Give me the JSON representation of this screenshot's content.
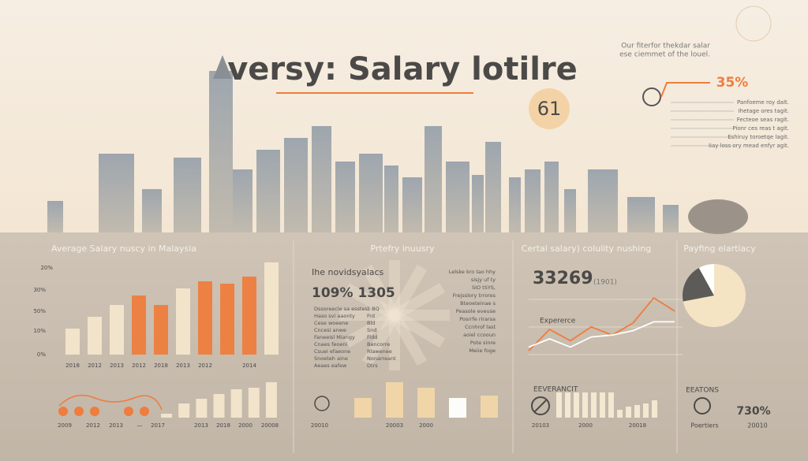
{
  "header": {
    "title": "versy: Salary lotilre",
    "badge": "61",
    "note": [
      "Our fiterfor thekdar salar",
      "ese ciemmet of the louel."
    ],
    "stat": "35%",
    "stat_list": [
      "Panfoeme roy dalt.",
      "Ihetage ores tagit.",
      "Fecteoe seas ragit.",
      "Pionr ces reas t agit.",
      "Eshiruy toroetqe lagit.",
      "Iiay loss ory mead enfyr agit."
    ]
  },
  "chart_data": [
    {
      "type": "bar",
      "title": "Average Salary nuscy in Malaysia",
      "axis_labels": [
        "20%",
        "30%",
        "50%",
        "10%",
        "0%"
      ],
      "categories": [
        "2018",
        "2012",
        "2013",
        "2012",
        "2018",
        "2013",
        "2012",
        null,
        "2014",
        null
      ],
      "values": [
        11,
        16,
        21,
        25,
        21,
        28,
        31,
        30,
        33,
        39
      ],
      "colors": [
        "#f3e6cc",
        "#f3e6cc",
        "#f3e6cc",
        "#ee7d3e",
        "#ee7d3e",
        "#f3e6cc",
        "#ee7d3e",
        "#ee7d3e",
        "#ee7d3e",
        "#f3e6cc"
      ],
      "ylim": [
        0,
        40
      ]
    },
    {
      "type": "line",
      "title": "Certal salary) colulity nushing",
      "headline": "33269",
      "subtitle": "(1901)",
      "label": "Expererce",
      "categories": [
        null,
        null,
        null,
        null,
        null,
        null,
        null,
        null
      ],
      "series": [
        {
          "color": "#ee7d3e",
          "values": [
            6,
            40,
            22,
            44,
            31,
            50,
            90,
            69
          ]
        },
        {
          "color": "#ffffff",
          "values": [
            12,
            25,
            12,
            28,
            31,
            38,
            52,
            52
          ]
        }
      ],
      "ylim": [
        0,
        100
      ]
    },
    {
      "type": "pie",
      "title": "Payfing elartiacy",
      "values": [
        72,
        20,
        8
      ],
      "colors": [
        "#f4e4c4",
        "#5c5b58",
        "#ffffff"
      ]
    },
    {
      "type": "bar",
      "axis_labels": [
        "2009",
        "2012",
        "2013",
        "—",
        "2017",
        "2013",
        "2018",
        "2000",
        "20008"
      ],
      "values": [
        5,
        18,
        24,
        30,
        36,
        38,
        45
      ],
      "color": "#f3e6cc",
      "ylim": [
        0,
        50
      ]
    },
    {
      "type": "bar",
      "axis_labels": [
        "20010",
        "20003",
        "2000"
      ],
      "values": [
        25,
        45,
        38,
        25,
        28
      ],
      "colors": [
        "#f1d6a8",
        "#f1d6a8",
        "#f1d6a8",
        "#ffffff",
        "#f1d6a8"
      ],
      "ylim": [
        0,
        50
      ]
    },
    {
      "type": "bar",
      "title": "EEVERANCIT",
      "axis_labels": [
        "20103",
        "2000",
        "20018"
      ],
      "values": [
        32,
        32,
        32,
        32,
        32,
        32,
        32,
        10,
        14,
        16,
        18,
        22
      ],
      "color": "#f6ead3",
      "ylim": [
        0,
        40
      ]
    }
  ],
  "middle": {
    "title": "Prtefry inuusry",
    "subtitle": "Ihe novidsyalacs",
    "headline": "109% 1305",
    "list": [
      "Dssoreecle sa esstes",
      "Haso svi aaonty",
      "Cese woeene",
      "Cncesi anwe",
      "Faneeisl Miangy",
      "Cnaes feoeni",
      "Csuei efaeone",
      "Snoeteh aine",
      "Aeaes eafew"
    ],
    "list2": [
      "1 BQ",
      "Frd",
      "Bld",
      "Snd",
      "Fidd",
      "Bencorre",
      "Rlawenee",
      "Nonarreant",
      "Dtrs"
    ],
    "side": [
      "Lelske kro tao hhy",
      "sisjy uf ty",
      "SIO tSYS,",
      "Frejsslory trrores",
      "Bteoeteinae s",
      "Peasole eveuse",
      "Posrrfe rirarsa",
      "Ccnhrof last",
      "aoiel ccooun",
      "Pote sinre",
      "Meiie foge"
    ]
  },
  "footer_right": {
    "title": "EEATONS",
    "stat": "730%",
    "label": "Poertiers",
    "year": "20010"
  }
}
